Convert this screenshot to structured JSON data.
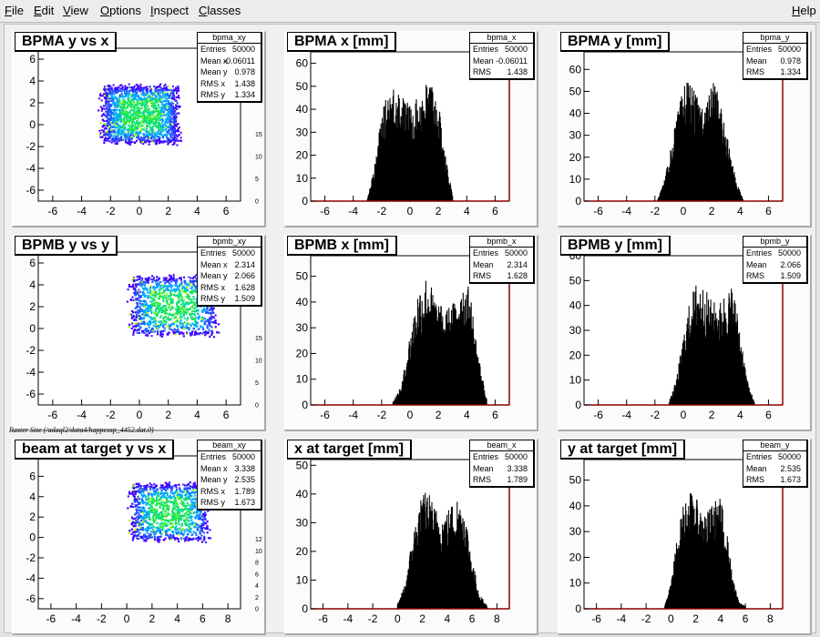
{
  "menu": {
    "file": "File",
    "edit": "Edit",
    "view": "View",
    "options": "Options",
    "inspect": "Inspect",
    "classes": "Classes",
    "help": "Help"
  },
  "footer_label": "Raster Size (/adaql2/data4/happexsp_4452.dat.0)",
  "chart_data": [
    {
      "type": "heatmap",
      "title": "BPMA y vs x",
      "stats": {
        "name": "bpma_xy",
        "rows": [
          [
            "Entries",
            "50000"
          ],
          [
            "Mean x",
            "-0.06011"
          ],
          [
            "Mean y",
            "0.978"
          ],
          [
            "RMS x",
            "1.438"
          ],
          [
            "RMS y",
            "1.334"
          ]
        ]
      },
      "xlim": [
        -7,
        7
      ],
      "ylim": [
        -7,
        7
      ],
      "xticks": [
        "-6",
        "-4",
        "-2",
        "0",
        "2",
        "4",
        "6"
      ],
      "yticks": [
        "-6",
        "-4",
        "-2",
        "0",
        "2",
        "4",
        "6"
      ],
      "zticks": [
        "0",
        "5",
        "10",
        "15"
      ],
      "x_range": [
        -2.6,
        2.6
      ],
      "y_range": [
        -1.6,
        3.6
      ]
    },
    {
      "type": "bar",
      "title": "BPMA x [mm]",
      "stats": {
        "name": "bpma_x",
        "rows": [
          [
            "Entries",
            "50000"
          ],
          [
            "Mean",
            "-0.06011"
          ],
          [
            "RMS",
            "1.438"
          ]
        ]
      },
      "xlim": [
        -7,
        7
      ],
      "ylim": [
        0,
        65
      ],
      "xticks": [
        "-6",
        "-4",
        "-2",
        "0",
        "2",
        "4",
        "6"
      ],
      "yticks": [
        "0",
        "10",
        "20",
        "30",
        "40",
        "50",
        "60"
      ],
      "x": [
        -3,
        -2.5,
        -2,
        -1.5,
        -1,
        -0.5,
        0,
        0.5,
        1,
        1.5,
        2,
        2.5,
        3
      ],
      "values": [
        1,
        12,
        30,
        38,
        41,
        36,
        33,
        35,
        40,
        42,
        34,
        16,
        2
      ]
    },
    {
      "type": "bar",
      "title": "BPMA y [mm]",
      "stats": {
        "name": "bpma_y",
        "rows": [
          [
            "Entries",
            "50000"
          ],
          [
            "Mean",
            "0.978"
          ],
          [
            "RMS",
            "1.334"
          ]
        ]
      },
      "xlim": [
        -7,
        7
      ],
      "ylim": [
        0,
        68
      ],
      "xticks": [
        "-6",
        "-4",
        "-2",
        "0",
        "2",
        "4",
        "6"
      ],
      "yticks": [
        "0",
        "10",
        "20",
        "30",
        "40",
        "50",
        "60"
      ],
      "x": [
        -1.8,
        -1.3,
        -0.8,
        -0.3,
        0.2,
        0.7,
        1.2,
        1.7,
        2.2,
        2.7,
        3.2,
        3.7,
        4.2
      ],
      "values": [
        1,
        8,
        22,
        34,
        45,
        40,
        35,
        37,
        44,
        34,
        20,
        8,
        1
      ]
    },
    {
      "type": "heatmap",
      "title": "BPMB y vs y",
      "stats": {
        "name": "bpmb_xy",
        "rows": [
          [
            "Entries",
            "50000"
          ],
          [
            "Mean x",
            "2.314"
          ],
          [
            "Mean y",
            "2.066"
          ],
          [
            "RMS x",
            "1.628"
          ],
          [
            "RMS y",
            "1.509"
          ]
        ]
      },
      "xlim": [
        -7,
        7
      ],
      "ylim": [
        -7,
        7
      ],
      "xticks": [
        "-6",
        "-4",
        "-2",
        "0",
        "2",
        "4",
        "6"
      ],
      "yticks": [
        "-6",
        "-4",
        "-2",
        "0",
        "2",
        "4",
        "6"
      ],
      "zticks": [
        "0",
        "5",
        "10",
        "15"
      ],
      "x_range": [
        -0.6,
        5.2
      ],
      "y_range": [
        -0.5,
        4.8
      ]
    },
    {
      "type": "bar",
      "title": "BPMB x [mm]",
      "stats": {
        "name": "bpmb_x",
        "rows": [
          [
            "Entries",
            "50000"
          ],
          [
            "Mean",
            "2.314"
          ],
          [
            "RMS",
            "1.628"
          ]
        ]
      },
      "xlim": [
        -7,
        7
      ],
      "ylim": [
        0,
        58
      ],
      "xticks": [
        "-6",
        "-4",
        "-2",
        "0",
        "2",
        "4",
        "6"
      ],
      "yticks": [
        "0",
        "10",
        "20",
        "30",
        "40",
        "50"
      ],
      "x": [
        -1.2,
        -0.6,
        0,
        0.6,
        1.2,
        1.8,
        2.4,
        3,
        3.6,
        4.2,
        4.8,
        5.4
      ],
      "values": [
        1,
        6,
        22,
        36,
        40,
        33,
        29,
        31,
        38,
        36,
        16,
        2
      ]
    },
    {
      "type": "bar",
      "title": "BPMB y [mm]",
      "stats": {
        "name": "bpmb_y",
        "rows": [
          [
            "Entries",
            "50000"
          ],
          [
            "Mean",
            "2.066"
          ],
          [
            "RMS",
            "1.509"
          ]
        ]
      },
      "xlim": [
        -7,
        7
      ],
      "ylim": [
        0,
        60
      ],
      "xticks": [
        "-6",
        "-4",
        "-2",
        "0",
        "2",
        "4",
        "6"
      ],
      "yticks": [
        "0",
        "10",
        "20",
        "30",
        "40",
        "50",
        "60"
      ],
      "x": [
        -1,
        -0.5,
        0,
        0.5,
        1,
        1.5,
        2,
        2.5,
        3,
        3.5,
        4,
        4.5,
        5
      ],
      "values": [
        1,
        8,
        22,
        34,
        40,
        37,
        33,
        32,
        36,
        38,
        24,
        8,
        1
      ]
    },
    {
      "type": "heatmap",
      "title": "beam at target y vs x",
      "stats": {
        "name": "beam_xy",
        "rows": [
          [
            "Entries",
            "50000"
          ],
          [
            "Mean x",
            "3.338"
          ],
          [
            "Mean y",
            "2.535"
          ],
          [
            "RMS x",
            "1.789"
          ],
          [
            "RMS y",
            "1.673"
          ]
        ]
      },
      "xlim": [
        -7,
        9
      ],
      "ylim": [
        -7,
        8
      ],
      "xticks": [
        "-6",
        "-4",
        "-2",
        "0",
        "2",
        "4",
        "6",
        "8"
      ],
      "yticks": [
        "-6",
        "-4",
        "-2",
        "0",
        "2",
        "4",
        "6"
      ],
      "zticks": [
        "0",
        "2",
        "4",
        "6",
        "8",
        "10",
        "12"
      ],
      "x_range": [
        0.3,
        6.3
      ],
      "y_range": [
        -0.2,
        5.3
      ]
    },
    {
      "type": "bar",
      "title": "x at target [mm]",
      "stats": {
        "name": "beam_x",
        "rows": [
          [
            "Entries",
            "50000"
          ],
          [
            "Mean",
            "3.338"
          ],
          [
            "RMS",
            "1.789"
          ]
        ]
      },
      "xlim": [
        -7,
        9
      ],
      "ylim": [
        0,
        52
      ],
      "xticks": [
        "-6",
        "-4",
        "-2",
        "0",
        "2",
        "4",
        "6",
        "8"
      ],
      "yticks": [
        "0",
        "10",
        "20",
        "30",
        "40",
        "50"
      ],
      "x": [
        0,
        0.6,
        1.2,
        1.8,
        2.4,
        3,
        3.6,
        4.2,
        4.8,
        5.4,
        6,
        6.6,
        7.2
      ],
      "values": [
        1,
        7,
        20,
        30,
        33,
        28,
        26,
        28,
        31,
        28,
        14,
        4,
        1
      ]
    },
    {
      "type": "bar",
      "title": "y at target [mm]",
      "stats": {
        "name": "beam_y",
        "rows": [
          [
            "Entries",
            "50000"
          ],
          [
            "Mean",
            "2.535"
          ],
          [
            "RMS",
            "1.673"
          ]
        ]
      },
      "xlim": [
        -7,
        9
      ],
      "ylim": [
        0,
        58
      ],
      "xticks": [
        "-6",
        "-4",
        "-2",
        "0",
        "2",
        "4",
        "6",
        "8"
      ],
      "yticks": [
        "0",
        "10",
        "20",
        "30",
        "40",
        "50"
      ],
      "x": [
        -0.5,
        0,
        0.5,
        1,
        1.5,
        2,
        2.5,
        3,
        3.5,
        4,
        4.5,
        5,
        5.5,
        6
      ],
      "values": [
        1,
        8,
        22,
        32,
        36,
        34,
        30,
        30,
        33,
        34,
        24,
        9,
        2,
        1
      ]
    }
  ]
}
